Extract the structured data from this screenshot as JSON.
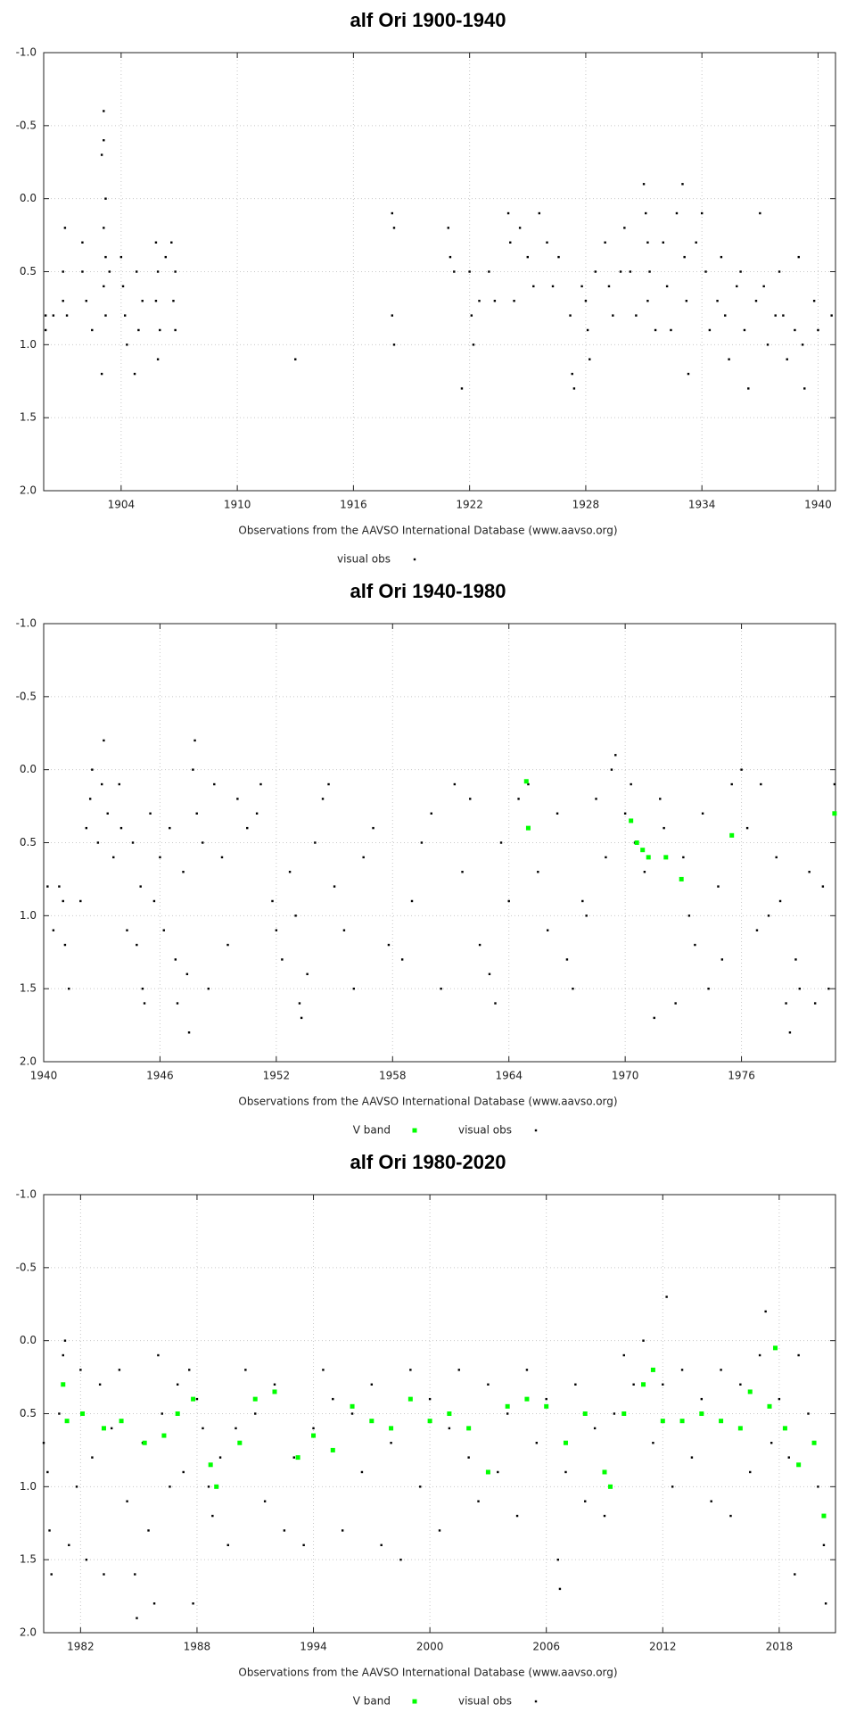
{
  "chart_data": [
    {
      "type": "scatter",
      "title": "alf Ori 1900-1940",
      "xlabel": "Observations from the AAVSO International Database (www.aavso.org)",
      "xlim": [
        1900,
        1940.9
      ],
      "ylim": [
        2.0,
        -1.0
      ],
      "grid": true,
      "xticks": [
        1904,
        1910,
        1916,
        1922,
        1928,
        1934,
        1940
      ],
      "yticks": [
        {
          "value": -1.0,
          "label": "-1.0"
        },
        {
          "value": -0.5,
          "label": "-0.5"
        },
        {
          "value": 0.0,
          "label": "0.0"
        },
        {
          "value": 0.5,
          "label": "0.5"
        },
        {
          "value": 1.0,
          "label": "1.0"
        },
        {
          "value": 1.5,
          "label": "1.5"
        },
        {
          "value": 2.0,
          "label": "2.0"
        }
      ],
      "series": [
        {
          "name": "visual obs",
          "color": "#000000",
          "x": [
            1900.1,
            1900.1,
            1900.5,
            1901,
            1901,
            1901.1,
            1901.2,
            1902,
            1902,
            1902.2,
            1902.5,
            1903,
            1903.1,
            1903.1,
            1903.2,
            1903.1,
            1903.2,
            1903.1,
            1903.2,
            1903,
            1903.4,
            1904,
            1904.1,
            1904.2,
            1904.3,
            1904.8,
            1904.9,
            1904.7,
            1905.1,
            1905.8,
            1905.9,
            1905.8,
            1906,
            1905.9,
            1906.3,
            1906.6,
            1906.8,
            1906.7,
            1906.8,
            1913,
            1918,
            1918.1,
            1918,
            1918.1,
            1920.9,
            1921,
            1921.2,
            1921.6,
            1922,
            1922.1,
            1922.2,
            1922.5,
            1923,
            1923.3,
            1924,
            1924.1,
            1924.3,
            1924.6,
            1925,
            1925.3,
            1925.6,
            1926,
            1926.3,
            1926.6,
            1927.2,
            1927.3,
            1927.4,
            1927.8,
            1928,
            1928.1,
            1928.2,
            1928.5,
            1929,
            1929.2,
            1929.4,
            1929.8,
            1930,
            1930.3,
            1930.6,
            1931,
            1931.1,
            1931.2,
            1931.3,
            1931.2,
            1931.6,
            1932,
            1932.2,
            1932.4,
            1932.7,
            1933,
            1933.1,
            1933.2,
            1933.3,
            1933.7,
            1934,
            1934.2,
            1934.4,
            1934.8,
            1935,
            1935.2,
            1935.4,
            1935.8,
            1936,
            1936.2,
            1936.4,
            1936.8,
            1937,
            1937.2,
            1937.4,
            1937.8,
            1938,
            1938.2,
            1938.4,
            1938.8,
            1939,
            1939.2,
            1939.3,
            1939.8,
            1940,
            1940.7
          ],
          "values": [
            0.8,
            0.9,
            0.8,
            0.5,
            0.7,
            0.2,
            0.8,
            0.3,
            0.5,
            0.7,
            0.9,
            -0.3,
            -0.6,
            -0.4,
            0,
            0.2,
            0.4,
            0.6,
            0.8,
            1.2,
            0.5,
            0.4,
            0.6,
            0.8,
            1.0,
            0.5,
            0.9,
            1.2,
            0.7,
            0.3,
            0.5,
            0.7,
            0.9,
            1.1,
            0.4,
            0.3,
            0.5,
            0.7,
            0.9,
            1.1,
            0.1,
            0.2,
            0.8,
            1.0,
            0.2,
            0.4,
            0.5,
            1.3,
            0.5,
            0.8,
            1.0,
            0.7,
            0.5,
            0.7,
            0.1,
            0.3,
            0.7,
            0.2,
            0.4,
            0.6,
            0.1,
            0.3,
            0.6,
            0.4,
            0.8,
            1.2,
            1.3,
            0.6,
            0.7,
            0.9,
            1.1,
            0.5,
            0.3,
            0.6,
            0.8,
            0.5,
            0.2,
            0.5,
            0.8,
            -0.1,
            0.1,
            0.3,
            0.5,
            0.7,
            0.9,
            0.3,
            0.6,
            0.9,
            0.1,
            -0.1,
            0.4,
            0.7,
            1.2,
            0.3,
            0.1,
            0.5,
            0.9,
            0.7,
            0.4,
            0.8,
            1.1,
            0.6,
            0.5,
            0.9,
            1.3,
            0.7,
            0.1,
            0.6,
            1.0,
            0.8,
            0.5,
            0.8,
            1.1,
            0.9,
            0.4,
            1.0,
            1.3,
            0.7,
            0.9,
            0.8
          ]
        }
      ]
    },
    {
      "type": "scatter",
      "title": "alf Ori 1940-1980",
      "xlabel": "Observations from the AAVSO International Database (www.aavso.org)",
      "xlim": [
        1940,
        1980.85
      ],
      "ylim": [
        2.0,
        -1.0
      ],
      "grid": true,
      "xticks": [
        1940,
        1946,
        1952,
        1958,
        1964,
        1970,
        1976
      ],
      "yticks": [
        {
          "value": -1.0,
          "label": "-1.0"
        },
        {
          "value": -0.5,
          "label": "-0.5"
        },
        {
          "value": 0.0,
          "label": "0.0"
        },
        {
          "value": 0.5,
          "label": "0.5"
        },
        {
          "value": 1.0,
          "label": "1.0"
        },
        {
          "value": 1.5,
          "label": "1.5"
        },
        {
          "value": 2.0,
          "label": "2.0"
        }
      ],
      "series": [
        {
          "name": "V band",
          "color": "#00ff00",
          "x": [
            1964.9,
            1965,
            1970.3,
            1970.6,
            1970.9,
            1971.2,
            1972.1,
            1972.9,
            1975.5,
            1980.8
          ],
          "values": [
            0.08,
            0.4,
            0.35,
            0.5,
            0.55,
            0.6,
            0.6,
            0.75,
            0.45,
            0.3
          ]
        },
        {
          "name": "visual obs",
          "color": "#000000",
          "x": [
            1940.2,
            1940.5,
            1940.8,
            1941,
            1941.1,
            1941.3,
            1941.9,
            1942.2,
            1942.4,
            1942.5,
            1942.8,
            1943,
            1943.1,
            1943.3,
            1943.6,
            1943.9,
            1944,
            1944.3,
            1944.6,
            1944.8,
            1945,
            1945.1,
            1945.2,
            1945.5,
            1945.7,
            1946,
            1946.2,
            1946.5,
            1946.8,
            1946.9,
            1947.2,
            1947.4,
            1947.5,
            1947.7,
            1947.8,
            1947.9,
            1948.2,
            1948.5,
            1948.8,
            1949.2,
            1949.5,
            1950,
            1950.5,
            1951,
            1951.2,
            1951.8,
            1952,
            1952.3,
            1952.7,
            1953,
            1953.2,
            1953.3,
            1953.6,
            1954,
            1954.4,
            1954.7,
            1955,
            1955.5,
            1956,
            1956.5,
            1957,
            1957.8,
            1958.5,
            1959,
            1959.5,
            1960,
            1960.5,
            1961.2,
            1961.6,
            1962,
            1962.5,
            1963,
            1963.3,
            1963.6,
            1964,
            1964.5,
            1965,
            1965.5,
            1966,
            1966.5,
            1967,
            1967.3,
            1967.8,
            1968,
            1968.5,
            1969,
            1969.3,
            1969.5,
            1970,
            1970.3,
            1970.5,
            1971,
            1971.5,
            1971.8,
            1972,
            1972.6,
            1973,
            1973.3,
            1973.6,
            1974,
            1974.3,
            1974.8,
            1975,
            1975.5,
            1976,
            1976.3,
            1976.8,
            1977,
            1977.4,
            1977.8,
            1978,
            1978.3,
            1978.5,
            1978.8,
            1979,
            1979.5,
            1979.8,
            1980.2,
            1980.5,
            1980.8
          ],
          "values": [
            0.8,
            1.1,
            0.8,
            0.9,
            1.2,
            1.5,
            0.9,
            0.4,
            0.2,
            0,
            0.5,
            0.1,
            -0.2,
            0.3,
            0.6,
            0.1,
            0.4,
            1.1,
            0.5,
            1.2,
            0.8,
            1.5,
            1.6,
            0.3,
            0.9,
            0.6,
            1.1,
            0.4,
            1.3,
            1.6,
            0.7,
            1.4,
            1.8,
            0,
            -0.2,
            0.3,
            0.5,
            1.5,
            0.1,
            0.6,
            1.2,
            0.2,
            0.4,
            0.3,
            0.1,
            0.9,
            1.1,
            1.3,
            0.7,
            1.0,
            1.6,
            1.7,
            1.4,
            0.5,
            0.2,
            0.1,
            0.8,
            1.1,
            1.5,
            0.6,
            0.4,
            1.2,
            1.3,
            0.9,
            0.5,
            0.3,
            1.5,
            0.1,
            0.7,
            0.2,
            1.2,
            1.4,
            1.6,
            0.5,
            0.9,
            0.2,
            0.1,
            0.7,
            1.1,
            0.3,
            1.3,
            1.5,
            0.9,
            1.0,
            0.2,
            0.6,
            0,
            -0.1,
            0.3,
            0.1,
            0.5,
            0.7,
            1.7,
            0.2,
            0.4,
            1.6,
            0.6,
            1.0,
            1.2,
            0.3,
            1.5,
            0.8,
            1.3,
            0.1,
            0,
            0.4,
            1.1,
            0.1,
            1.0,
            0.6,
            0.9,
            1.6,
            1.8,
            1.3,
            1.5,
            0.7,
            1.6,
            0.8,
            1.5,
            0.1
          ]
        }
      ]
    },
    {
      "type": "scatter",
      "title": "alf Ori 1980-2020",
      "xlabel": "Observations from the AAVSO International Database (www.aavso.org)",
      "xlim": [
        1980.1,
        2020.9
      ],
      "ylim": [
        2.0,
        -1.0
      ],
      "grid": true,
      "xticks": [
        1982,
        1988,
        1994,
        2000,
        2006,
        2012,
        2018
      ],
      "yticks": [
        {
          "value": -1.0,
          "label": "-1.0"
        },
        {
          "value": -0.5,
          "label": "-0.5"
        },
        {
          "value": 0.0,
          "label": "0.0"
        },
        {
          "value": 0.5,
          "label": "0.5"
        },
        {
          "value": 1.0,
          "label": "1.0"
        },
        {
          "value": 1.5,
          "label": "1.5"
        },
        {
          "value": 2.0,
          "label": "2.0"
        }
      ],
      "series": [
        {
          "name": "V band",
          "color": "#00ff00",
          "x": [
            1981.1,
            1981.3,
            1982.1,
            1983.2,
            1984.1,
            1985.3,
            1986.3,
            1987,
            1987.8,
            1988.7,
            1989,
            1990.2,
            1991,
            1992,
            1993.2,
            1994,
            1995,
            1996,
            1997,
            1998,
            1999,
            2000,
            2001,
            2002,
            2003,
            2004,
            2005,
            2006,
            2007,
            2008,
            2009,
            2009.3,
            2010,
            2011,
            2011.5,
            2012,
            2013,
            2014,
            2015,
            2016,
            2016.5,
            2017.5,
            2017.8,
            2018.3,
            2019,
            2019.8,
            2020.3
          ],
          "values": [
            0.3,
            0.55,
            0.5,
            0.6,
            0.55,
            0.7,
            0.65,
            0.5,
            0.4,
            0.85,
            1.0,
            0.7,
            0.4,
            0.35,
            0.8,
            0.65,
            0.75,
            0.45,
            0.55,
            0.6,
            0.4,
            0.55,
            0.5,
            0.6,
            0.9,
            0.45,
            0.4,
            0.45,
            0.7,
            0.5,
            0.9,
            1.0,
            0.5,
            0.3,
            0.2,
            0.55,
            0.55,
            0.5,
            0.55,
            0.6,
            0.35,
            0.45,
            0.05,
            0.6,
            0.85,
            0.7,
            1.2
          ]
        },
        {
          "name": "visual obs",
          "color": "#000000",
          "x": [
            1980.1,
            1980.3,
            1980.4,
            1980.5,
            1980.9,
            1981.1,
            1981.2,
            1981.4,
            1981.8,
            1982,
            1982.3,
            1982.6,
            1983,
            1983.2,
            1983.6,
            1984,
            1984.4,
            1984.8,
            1984.9,
            1985.2,
            1985.5,
            1985.8,
            1986,
            1986.2,
            1986.6,
            1987,
            1987.3,
            1987.6,
            1987.8,
            1988,
            1988.3,
            1988.6,
            1988.8,
            1989.2,
            1989.6,
            1990,
            1990.5,
            1991,
            1991.5,
            1992,
            1992.5,
            1993,
            1993.5,
            1994,
            1994.5,
            1995,
            1995.5,
            1996,
            1996.5,
            1997,
            1997.5,
            1998,
            1998.5,
            1999,
            1999.5,
            2000,
            2000.5,
            2001,
            2001.5,
            2002,
            2002.5,
            2003,
            2003.5,
            2004,
            2004.5,
            2005,
            2005.5,
            2006,
            2006.6,
            2006.7,
            2007,
            2007.5,
            2008,
            2008.5,
            2009,
            2009.5,
            2010,
            2010.5,
            2011,
            2011.5,
            2012,
            2012.2,
            2012.5,
            2013,
            2013.5,
            2014,
            2014.5,
            2015,
            2015.5,
            2016,
            2016.5,
            2017,
            2017.3,
            2017.6,
            2018,
            2018.5,
            2018.8,
            2019,
            2019.5,
            2020,
            2020.3,
            2020.4
          ],
          "values": [
            0.7,
            0.9,
            1.3,
            1.6,
            0.5,
            0.1,
            0,
            1.4,
            1.0,
            0.2,
            1.5,
            0.8,
            0.3,
            1.6,
            0.6,
            0.2,
            1.1,
            1.6,
            1.9,
            0.7,
            1.3,
            1.8,
            0.1,
            0.5,
            1.0,
            0.3,
            0.9,
            0.2,
            1.8,
            0.4,
            0.6,
            1.0,
            1.2,
            0.8,
            1.4,
            0.6,
            0.2,
            0.5,
            1.1,
            0.3,
            1.3,
            0.8,
            1.4,
            0.6,
            0.2,
            0.4,
            1.3,
            0.5,
            0.9,
            0.3,
            1.4,
            0.7,
            1.5,
            0.2,
            1.0,
            0.4,
            1.3,
            0.6,
            0.2,
            0.8,
            1.1,
            0.3,
            0.9,
            0.5,
            1.2,
            0.2,
            0.7,
            0.4,
            1.5,
            1.7,
            0.9,
            0.3,
            1.1,
            0.6,
            1.2,
            0.5,
            0.1,
            0.3,
            0.0,
            0.7,
            0.3,
            -0.3,
            1.0,
            0.2,
            0.8,
            0.4,
            1.1,
            0.2,
            1.2,
            0.3,
            0.9,
            0.1,
            -0.2,
            0.7,
            0.4,
            0.8,
            1.6,
            0.1,
            0.5,
            1.0,
            1.4,
            1.8
          ]
        }
      ]
    }
  ]
}
